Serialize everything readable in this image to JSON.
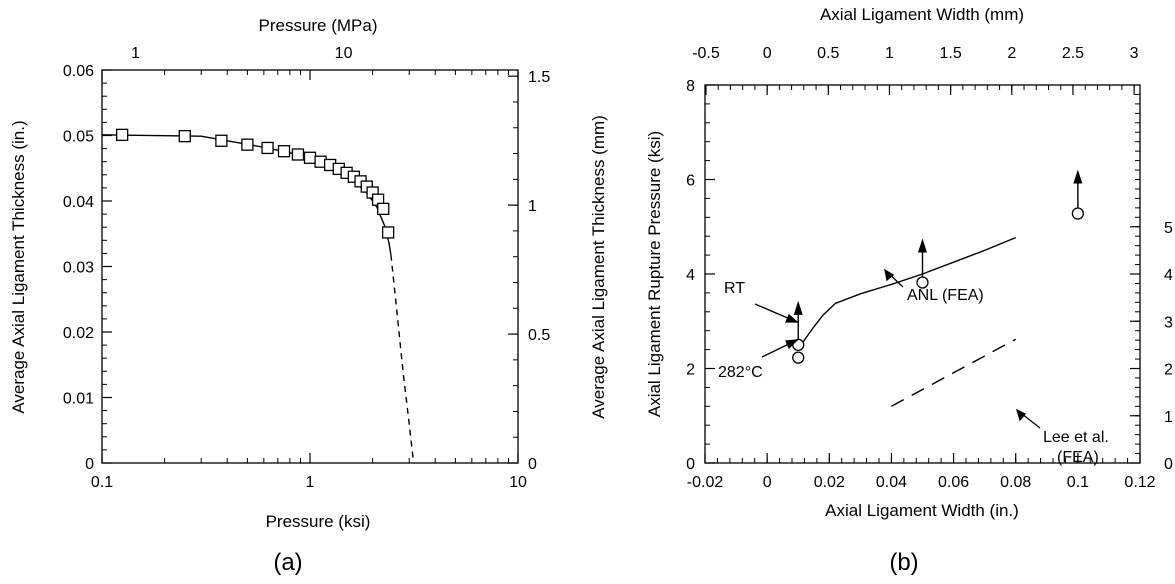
{
  "chart_data": [
    {
      "type": "scatter",
      "panel_label": "(a)",
      "xlabel": "Pressure   (ksi)",
      "ylabel": "Average Axial Ligament Thickness (in.)",
      "x2label": "Pressure   (MPa)",
      "y2label": "Average Axial Ligament Thickness (mm)",
      "x_scale": "log",
      "xlim": [
        0.1,
        10
      ],
      "ylim": [
        0,
        0.06
      ],
      "x_ticks": [
        {
          "v": 0.1,
          "t": "0.1"
        },
        {
          "v": 1,
          "t": "1"
        },
        {
          "v": 10,
          "t": "10"
        }
      ],
      "y_ticks": [
        {
          "v": 0,
          "t": "0"
        },
        {
          "v": 0.01,
          "t": "0.01"
        },
        {
          "v": 0.02,
          "t": "0.02"
        },
        {
          "v": 0.03,
          "t": "0.03"
        },
        {
          "v": 0.04,
          "t": "0.04"
        },
        {
          "v": 0.05,
          "t": "0.05"
        },
        {
          "v": 0.06,
          "t": "0.06"
        }
      ],
      "x2_ticks": [
        {
          "v": 1,
          "t": "1"
        },
        {
          "v": 10,
          "t": "10"
        }
      ],
      "y2_ticks": [
        {
          "v": 0,
          "t": "0"
        },
        {
          "v": 0.5,
          "t": "0.5"
        },
        {
          "v": 1,
          "t": "1"
        },
        {
          "v": 1.5,
          "t": "1.5"
        }
      ],
      "series": [
        {
          "style": "solid-line",
          "points": [
            [
              0.1,
              0.0501
            ],
            [
              0.3,
              0.0499
            ],
            [
              0.6,
              0.0482
            ],
            [
              1.0,
              0.0467
            ],
            [
              1.3,
              0.0452
            ],
            [
              1.6,
              0.0433
            ],
            [
              1.9,
              0.041
            ],
            [
              2.1,
              0.039
            ],
            [
              2.3,
              0.036
            ],
            [
              2.4,
              0.0335
            ],
            [
              2.45,
              0.0318
            ]
          ]
        },
        {
          "style": "dashed-line",
          "points": [
            [
              2.45,
              0.0318
            ],
            [
              2.6,
              0.024
            ],
            [
              2.8,
              0.014
            ],
            [
              3.0,
              0.006
            ],
            [
              3.15,
              0.0
            ]
          ]
        },
        {
          "style": "square-markers",
          "points": [
            [
              0.125,
              0.0501
            ],
            [
              0.25,
              0.0499
            ],
            [
              0.375,
              0.0492
            ],
            [
              0.5,
              0.0486
            ],
            [
              0.625,
              0.0481
            ],
            [
              0.75,
              0.0476
            ],
            [
              0.875,
              0.0471
            ],
            [
              1.0,
              0.0466
            ],
            [
              1.125,
              0.046
            ],
            [
              1.25,
              0.0455
            ],
            [
              1.375,
              0.0449
            ],
            [
              1.5,
              0.0443
            ],
            [
              1.625,
              0.0437
            ],
            [
              1.75,
              0.043
            ],
            [
              1.875,
              0.0422
            ],
            [
              2.0,
              0.0413
            ],
            [
              2.125,
              0.0402
            ],
            [
              2.25,
              0.0388
            ],
            [
              2.375,
              0.0352
            ]
          ]
        }
      ]
    },
    {
      "type": "scatter",
      "panel_label": "(b)",
      "xlabel": "Axial Ligament Width (in.)",
      "ylabel": "Axial Ligament Rupture Pressure (ksi)",
      "x2label": "Axial Ligament Width (mm)",
      "xlim": [
        -0.02,
        0.12
      ],
      "ylim": [
        0,
        8
      ],
      "x_ticks": [
        {
          "v": -0.02,
          "t": "-0.02"
        },
        {
          "v": 0,
          "t": "0"
        },
        {
          "v": 0.02,
          "t": "0.02"
        },
        {
          "v": 0.04,
          "t": "0.04"
        },
        {
          "v": 0.06,
          "t": "0.06"
        },
        {
          "v": 0.08,
          "t": "0.08"
        },
        {
          "v": 0.1,
          "t": "0.1"
        },
        {
          "v": 0.12,
          "t": "0.12"
        }
      ],
      "y_ticks": [
        {
          "v": 0,
          "t": "0"
        },
        {
          "v": 2,
          "t": "2"
        },
        {
          "v": 4,
          "t": "4"
        },
        {
          "v": 6,
          "t": "6"
        },
        {
          "v": 8,
          "t": "8"
        }
      ],
      "x2_ticks": [
        {
          "v": -0.5,
          "t": "-0.5"
        },
        {
          "v": 0,
          "t": "0"
        },
        {
          "v": 0.5,
          "t": "0.5"
        },
        {
          "v": 1,
          "t": "1"
        },
        {
          "v": 1.5,
          "t": "1.5"
        },
        {
          "v": 2,
          "t": "2"
        },
        {
          "v": 2.5,
          "t": "2.5"
        },
        {
          "v": 3,
          "t": "3"
        }
      ],
      "y2_ticks": [
        {
          "v": 0,
          "t": "0"
        },
        {
          "v": 6.895,
          "t": "1"
        },
        {
          "v": 13.79,
          "t": "2"
        },
        {
          "v": 20.685,
          "t": "3"
        },
        {
          "v": 27.58,
          "t": "4"
        },
        {
          "v": 34.475,
          "t": "5"
        }
      ],
      "series": [
        {
          "name": "ANL (FEA)",
          "style": "solid-line",
          "points": [
            [
              0.0095,
              2.42
            ],
            [
              0.012,
              2.6
            ],
            [
              0.015,
              2.88
            ],
            [
              0.018,
              3.13
            ],
            [
              0.022,
              3.38
            ],
            [
              0.03,
              3.58
            ],
            [
              0.04,
              3.78
            ],
            [
              0.05,
              4.0
            ],
            [
              0.06,
              4.25
            ],
            [
              0.07,
              4.5
            ],
            [
              0.08,
              4.77
            ]
          ]
        },
        {
          "name": "Lee et al. (FEA)",
          "style": "dashed-line",
          "points": [
            [
              0.04,
              1.2
            ],
            [
              0.08,
              2.62
            ]
          ]
        },
        {
          "style": "circle-markers-with-up-arrows",
          "points": [
            [
              0.01,
              2.5
            ],
            [
              0.05,
              3.82
            ],
            [
              0.1,
              5.28
            ]
          ]
        },
        {
          "style": "circle-marker",
          "points": [
            [
              0.01,
              2.23
            ]
          ]
        }
      ],
      "annotations": [
        {
          "text": "RT"
        },
        {
          "text": "282°C"
        },
        {
          "text": "ANL (FEA)"
        },
        {
          "text": "Lee et al."
        },
        {
          "text": "(FEA)"
        }
      ]
    }
  ]
}
